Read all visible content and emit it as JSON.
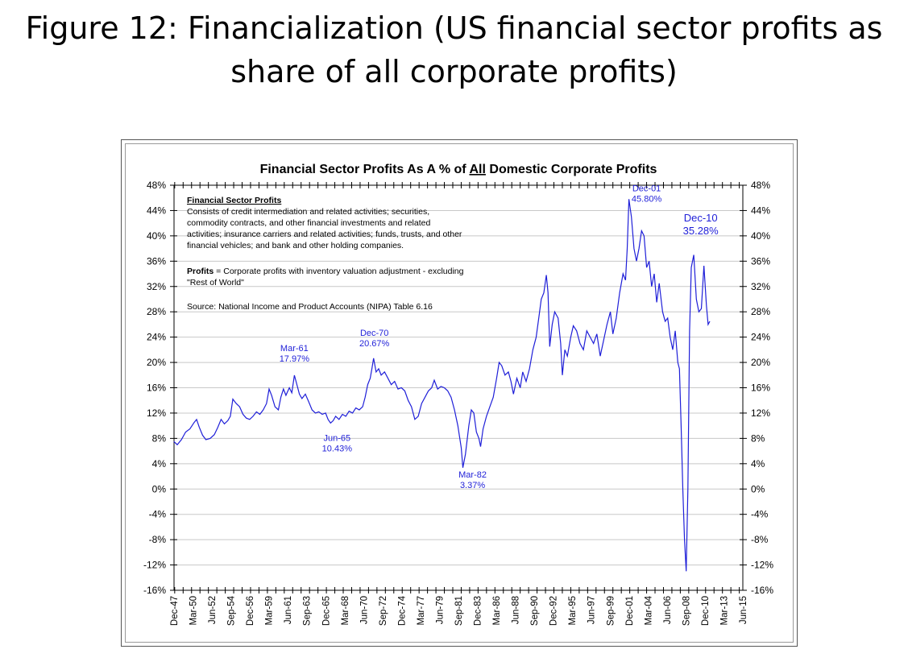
{
  "slide": {
    "title_line1": "Figure 12: Financialization (US financial sector profits as",
    "title_line2": "share of all corporate profits)"
  },
  "chart_data": {
    "type": "line",
    "title": "Financial Sector Profits As A % of All Domestic Corporate Profits",
    "title_parts": [
      "Financial Sector Profits As A % of ",
      "All",
      " Domestic Corporate Profits"
    ],
    "ylim": [
      -16,
      48
    ],
    "y_ticks": [
      48,
      44,
      40,
      36,
      32,
      28,
      24,
      20,
      16,
      12,
      8,
      4,
      0,
      -4,
      -8,
      -12,
      -16
    ],
    "y_tick_labels": [
      "48%",
      "44%",
      "40%",
      "36%",
      "32%",
      "28%",
      "24%",
      "20%",
      "16%",
      "12%",
      "8%",
      "4%",
      "0%",
      "-4%",
      "-8%",
      "-12%",
      "-16%"
    ],
    "x_tick_labels": [
      "Dec-47",
      "Mar-50",
      "Jun-52",
      "Sep-54",
      "Dec-56",
      "Mar-59",
      "Jun-61",
      "Sep-63",
      "Dec-65",
      "Mar-68",
      "Jun-70",
      "Sep-72",
      "Dec-74",
      "Mar-77",
      "Jun-79",
      "Sep-81",
      "Dec-83",
      "Mar-86",
      "Jun-88",
      "Sep-90",
      "Dec-92",
      "Mar-95",
      "Jun-97",
      "Sep-99",
      "Dec-01",
      "Mar-04",
      "Jun-06",
      "Sep-08",
      "Dec-10",
      "Mar-13",
      "Jun-15"
    ],
    "xlim": [
      1947.92,
      2015.42
    ],
    "grid": true,
    "series": [
      {
        "color": "#1f1fd8",
        "points": [
          [
            1947.9,
            7.5
          ],
          [
            1948.3,
            7.0
          ],
          [
            1948.8,
            7.8
          ],
          [
            1949.3,
            9.0
          ],
          [
            1949.8,
            9.5
          ],
          [
            1950.3,
            10.5
          ],
          [
            1950.6,
            11.0
          ],
          [
            1950.9,
            9.8
          ],
          [
            1951.3,
            8.5
          ],
          [
            1951.7,
            7.8
          ],
          [
            1952.2,
            8.0
          ],
          [
            1952.7,
            8.6
          ],
          [
            1953.1,
            9.7
          ],
          [
            1953.5,
            11.0
          ],
          [
            1953.9,
            10.3
          ],
          [
            1954.3,
            10.8
          ],
          [
            1954.6,
            11.5
          ],
          [
            1954.9,
            14.2
          ],
          [
            1955.3,
            13.5
          ],
          [
            1955.7,
            13.0
          ],
          [
            1956.1,
            11.8
          ],
          [
            1956.5,
            11.2
          ],
          [
            1956.9,
            11.0
          ],
          [
            1957.3,
            11.5
          ],
          [
            1957.7,
            12.2
          ],
          [
            1958.1,
            11.8
          ],
          [
            1958.5,
            12.5
          ],
          [
            1958.9,
            13.5
          ],
          [
            1959.2,
            15.8
          ],
          [
            1959.5,
            14.8
          ],
          [
            1959.9,
            13.0
          ],
          [
            1960.3,
            12.5
          ],
          [
            1960.6,
            14.5
          ],
          [
            1960.9,
            15.8
          ],
          [
            1961.2,
            14.8
          ],
          [
            1961.6,
            16.0
          ],
          [
            1961.9,
            15.2
          ],
          [
            1962.2,
            17.97
          ],
          [
            1962.5,
            16.5
          ],
          [
            1962.8,
            15.0
          ],
          [
            1963.1,
            14.3
          ],
          [
            1963.5,
            15.0
          ],
          [
            1963.9,
            13.8
          ],
          [
            1964.3,
            12.5
          ],
          [
            1964.7,
            12.0
          ],
          [
            1965.1,
            12.2
          ],
          [
            1965.5,
            11.8
          ],
          [
            1965.9,
            12.0
          ],
          [
            1966.2,
            11.0
          ],
          [
            1966.5,
            10.43
          ],
          [
            1966.8,
            10.8
          ],
          [
            1967.1,
            11.5
          ],
          [
            1967.5,
            11.0
          ],
          [
            1967.9,
            11.8
          ],
          [
            1968.3,
            11.5
          ],
          [
            1968.7,
            12.3
          ],
          [
            1969.1,
            12.0
          ],
          [
            1969.5,
            12.8
          ],
          [
            1969.9,
            12.5
          ],
          [
            1970.3,
            13.0
          ],
          [
            1970.6,
            14.5
          ],
          [
            1970.9,
            16.5
          ],
          [
            1971.2,
            17.5
          ],
          [
            1971.4,
            19.0
          ],
          [
            1971.6,
            20.67
          ],
          [
            1971.9,
            18.5
          ],
          [
            1972.2,
            19.0
          ],
          [
            1972.5,
            18.0
          ],
          [
            1972.9,
            18.5
          ],
          [
            1973.3,
            17.5
          ],
          [
            1973.7,
            16.5
          ],
          [
            1974.1,
            17.0
          ],
          [
            1974.5,
            15.8
          ],
          [
            1974.9,
            16.0
          ],
          [
            1975.3,
            15.5
          ],
          [
            1975.7,
            14.0
          ],
          [
            1976.1,
            13.0
          ],
          [
            1976.5,
            11.0
          ],
          [
            1976.9,
            11.5
          ],
          [
            1977.3,
            13.5
          ],
          [
            1977.7,
            14.5
          ],
          [
            1978.1,
            15.5
          ],
          [
            1978.5,
            16.0
          ],
          [
            1978.8,
            17.2
          ],
          [
            1979.2,
            15.8
          ],
          [
            1979.6,
            16.2
          ],
          [
            1980.0,
            16.0
          ],
          [
            1980.4,
            15.5
          ],
          [
            1980.8,
            14.5
          ],
          [
            1981.2,
            12.5
          ],
          [
            1981.6,
            10.0
          ],
          [
            1982.0,
            6.5
          ],
          [
            1982.2,
            3.37
          ],
          [
            1982.5,
            5.5
          ],
          [
            1982.9,
            10.0
          ],
          [
            1983.2,
            12.5
          ],
          [
            1983.5,
            12.0
          ],
          [
            1983.8,
            9.0
          ],
          [
            1984.1,
            8.0
          ],
          [
            1984.3,
            6.7
          ],
          [
            1984.6,
            9.5
          ],
          [
            1985.0,
            11.5
          ],
          [
            1985.4,
            13.0
          ],
          [
            1985.8,
            14.5
          ],
          [
            1986.2,
            17.5
          ],
          [
            1986.5,
            20.0
          ],
          [
            1986.8,
            19.5
          ],
          [
            1987.2,
            18.0
          ],
          [
            1987.6,
            18.5
          ],
          [
            1987.9,
            17.0
          ],
          [
            1988.2,
            15.0
          ],
          [
            1988.6,
            17.5
          ],
          [
            1989.0,
            16.0
          ],
          [
            1989.3,
            18.5
          ],
          [
            1989.7,
            17.0
          ],
          [
            1990.1,
            19.0
          ],
          [
            1990.5,
            22.0
          ],
          [
            1990.9,
            24.0
          ],
          [
            1991.2,
            27.0
          ],
          [
            1991.5,
            30.0
          ],
          [
            1991.8,
            31.0
          ],
          [
            1992.1,
            33.8
          ],
          [
            1992.3,
            31.0
          ],
          [
            1992.5,
            22.5
          ],
          [
            1992.8,
            26.0
          ],
          [
            1993.1,
            28.0
          ],
          [
            1993.5,
            27.0
          ],
          [
            1993.8,
            23.0
          ],
          [
            1994.0,
            18.0
          ],
          [
            1994.3,
            22.0
          ],
          [
            1994.6,
            21.0
          ],
          [
            1995.0,
            24.0
          ],
          [
            1995.3,
            25.8
          ],
          [
            1995.7,
            25.0
          ],
          [
            1996.1,
            23.0
          ],
          [
            1996.5,
            22.0
          ],
          [
            1996.9,
            25.0
          ],
          [
            1997.3,
            24.0
          ],
          [
            1997.7,
            23.0
          ],
          [
            1998.1,
            24.5
          ],
          [
            1998.5,
            21.0
          ],
          [
            1998.9,
            23.5
          ],
          [
            1999.3,
            26.0
          ],
          [
            1999.7,
            28.0
          ],
          [
            2000.0,
            24.5
          ],
          [
            2000.4,
            27.0
          ],
          [
            2000.8,
            31.0
          ],
          [
            2001.2,
            34.0
          ],
          [
            2001.5,
            33.0
          ],
          [
            2001.7,
            38.0
          ],
          [
            2001.9,
            45.8
          ],
          [
            2002.2,
            43.0
          ],
          [
            2002.5,
            38.0
          ],
          [
            2002.8,
            36.0
          ],
          [
            2003.1,
            38.0
          ],
          [
            2003.4,
            40.8
          ],
          [
            2003.7,
            40.0
          ],
          [
            2004.0,
            35.0
          ],
          [
            2004.3,
            36.0
          ],
          [
            2004.6,
            32.0
          ],
          [
            2004.9,
            34.0
          ],
          [
            2005.2,
            29.5
          ],
          [
            2005.5,
            32.5
          ],
          [
            2005.9,
            28.0
          ],
          [
            2006.2,
            26.5
          ],
          [
            2006.5,
            27.0
          ],
          [
            2006.8,
            24.0
          ],
          [
            2007.1,
            22.0
          ],
          [
            2007.4,
            25.0
          ],
          [
            2007.7,
            20.0
          ],
          [
            2007.9,
            19.0
          ],
          [
            2008.1,
            10.0
          ],
          [
            2008.3,
            0.0
          ],
          [
            2008.5,
            -8.0
          ],
          [
            2008.7,
            -13.0
          ],
          [
            2008.9,
            0.0
          ],
          [
            2009.1,
            25.0
          ],
          [
            2009.3,
            35.0
          ],
          [
            2009.6,
            37.0
          ],
          [
            2009.9,
            30.0
          ],
          [
            2010.2,
            28.0
          ],
          [
            2010.5,
            28.5
          ],
          [
            2010.8,
            35.28
          ],
          [
            2011.1,
            29.0
          ],
          [
            2011.3,
            26.0
          ],
          [
            2011.5,
            26.5
          ]
        ]
      }
    ],
    "annotations": [
      {
        "x": 1962.2,
        "y": 17.97,
        "date": "Mar-61",
        "value": "17.97%"
      },
      {
        "x": 1966.5,
        "y": 10.43,
        "date": "Jun-65",
        "value": "10.43%"
      },
      {
        "x": 1971.6,
        "y": 20.67,
        "date": "Dec-70",
        "value": "20.67%"
      },
      {
        "x": 1982.2,
        "y": 3.37,
        "date": "Mar-82",
        "value": "3.37%"
      },
      {
        "x": 2001.9,
        "y": 45.8,
        "date": "Dec-01",
        "value": "45.80%"
      },
      {
        "x": 2010.8,
        "y": 35.28,
        "date": "Dec-10",
        "value": "35.28%"
      }
    ],
    "notes": {
      "heading": "Financial Sector Profits",
      "lines": [
        "Consists of credit intermediation and related activities; securities,",
        "commodity contracts, and other financial investments and related",
        "activities; insurance carriers and related activities; funds, trusts, and other",
        "financial vehicles; and bank and other holding companies."
      ],
      "profits_label": "Profits",
      "profits_line1": " =  Corporate profits with inventory valuation adjustment - excluding",
      "profits_line2": "\"Rest of World\"",
      "source": "Source:  National Income and Product Accounts (NIPA) Table 6.16"
    }
  }
}
